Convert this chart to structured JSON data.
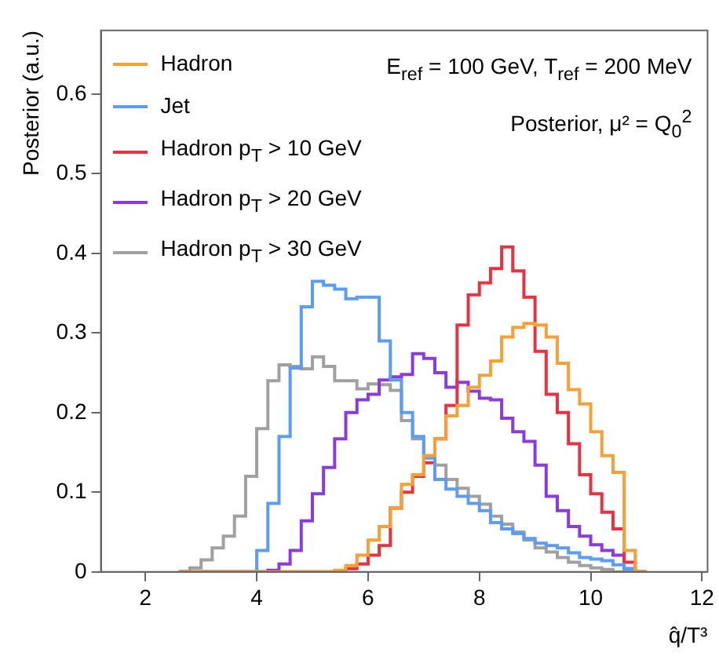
{
  "chart_data": {
    "type": "histogram",
    "xlabel": "q̂/T³",
    "ylabel": "Posterior (a.u.)",
    "annotations": [
      "E$_{ref}$ = 100 GeV, T$_{ref}$ = 200 MeV",
      "Posterior,   μ² = Q$_{0}$$^{2}$"
    ],
    "bins": [
      2.6,
      2.8,
      3.0,
      3.2,
      3.4,
      3.6,
      3.8,
      4.0,
      4.2,
      4.4,
      4.6,
      4.8,
      5.0,
      5.2,
      5.4,
      5.6,
      5.8,
      6.0,
      6.2,
      6.4,
      6.6,
      6.8,
      7.0,
      7.2,
      7.4,
      7.6,
      7.8,
      8.0,
      8.2,
      8.4,
      8.6,
      8.8,
      9.0,
      9.2,
      9.4,
      9.6,
      9.8,
      10.0,
      10.2,
      10.4,
      10.6,
      10.8,
      11.0
    ],
    "series": [
      {
        "name": "Hadron",
        "color": "#f7a035",
        "values": [
          0,
          0,
          0,
          0,
          0,
          0,
          0,
          0,
          0,
          0,
          0,
          0,
          0,
          0,
          0.002,
          0.008,
          0.021,
          0.04,
          0.057,
          0.08,
          0.11,
          0.122,
          0.146,
          0.167,
          0.196,
          0.209,
          0.232,
          0.247,
          0.265,
          0.295,
          0.307,
          0.312,
          0.31,
          0.295,
          0.262,
          0.229,
          0.211,
          0.176,
          0.146,
          0.125,
          0.027,
          0
        ]
      },
      {
        "name": "Jet",
        "color": "#5a9cf8",
        "values": [
          0,
          0,
          0,
          0,
          0,
          0,
          0,
          0.027,
          0.086,
          0.17,
          0.256,
          0.333,
          0.365,
          0.36,
          0.355,
          0.343,
          0.345,
          0.345,
          0.29,
          0.241,
          0.2,
          0.17,
          0.143,
          0.116,
          0.104,
          0.095,
          0.086,
          0.077,
          0.062,
          0.054,
          0.048,
          0.042,
          0.036,
          0.033,
          0.03,
          0.024,
          0.018,
          0.016,
          0.014,
          0.009,
          0.004,
          0
        ]
      },
      {
        "name": "Hadron p$_{T}$ > 10 GeV",
        "color": "#e8323f",
        "values": [
          0,
          0,
          0,
          0,
          0,
          0,
          0,
          0,
          0,
          0,
          0,
          0,
          0,
          0,
          0,
          0.004,
          0.01,
          0.021,
          0.033,
          0.08,
          0.1,
          0.12,
          0.137,
          0.167,
          0.209,
          0.31,
          0.348,
          0.363,
          0.381,
          0.408,
          0.378,
          0.345,
          0.277,
          0.223,
          0.2,
          0.161,
          0.122,
          0.098,
          0.075,
          0.054,
          0.012,
          0
        ]
      },
      {
        "name": "Hadron p$_{T}$ > 20 GeV",
        "color": "#8a3be0",
        "values": [
          0,
          0,
          0,
          0,
          0,
          0,
          0,
          0,
          0.002,
          0.01,
          0.027,
          0.064,
          0.098,
          0.131,
          0.167,
          0.2,
          0.216,
          0.223,
          0.241,
          0.245,
          0.248,
          0.274,
          0.268,
          0.25,
          0.232,
          0.238,
          0.227,
          0.218,
          0.216,
          0.193,
          0.176,
          0.164,
          0.134,
          0.095,
          0.077,
          0.057,
          0.045,
          0.034,
          0.027,
          0.021,
          0.004,
          0
        ]
      },
      {
        "name": "Hadron p$_{T}$ > 30 GeV",
        "color": "#a0a0a0",
        "values": [
          0,
          0.005,
          0.015,
          0.03,
          0.045,
          0.07,
          0.12,
          0.18,
          0.24,
          0.26,
          0.258,
          0.255,
          0.27,
          0.258,
          0.24,
          0.24,
          0.23,
          0.236,
          0.235,
          0.228,
          0.19,
          0.167,
          0.146,
          0.134,
          0.116,
          0.105,
          0.095,
          0.085,
          0.07,
          0.06,
          0.05,
          0.04,
          0.03,
          0.025,
          0.018,
          0.012,
          0.008,
          0.005,
          0.003,
          0,
          0,
          0
        ]
      }
    ],
    "xlim": [
      1.2,
      12.1
    ],
    "ylim": [
      0,
      0.68
    ],
    "xticks": [
      2,
      4,
      6,
      8,
      10,
      12
    ],
    "yticks": [
      0,
      0.1,
      0.2,
      0.3,
      0.4,
      0.5,
      0.6
    ],
    "grid": false,
    "legend": "top left"
  }
}
